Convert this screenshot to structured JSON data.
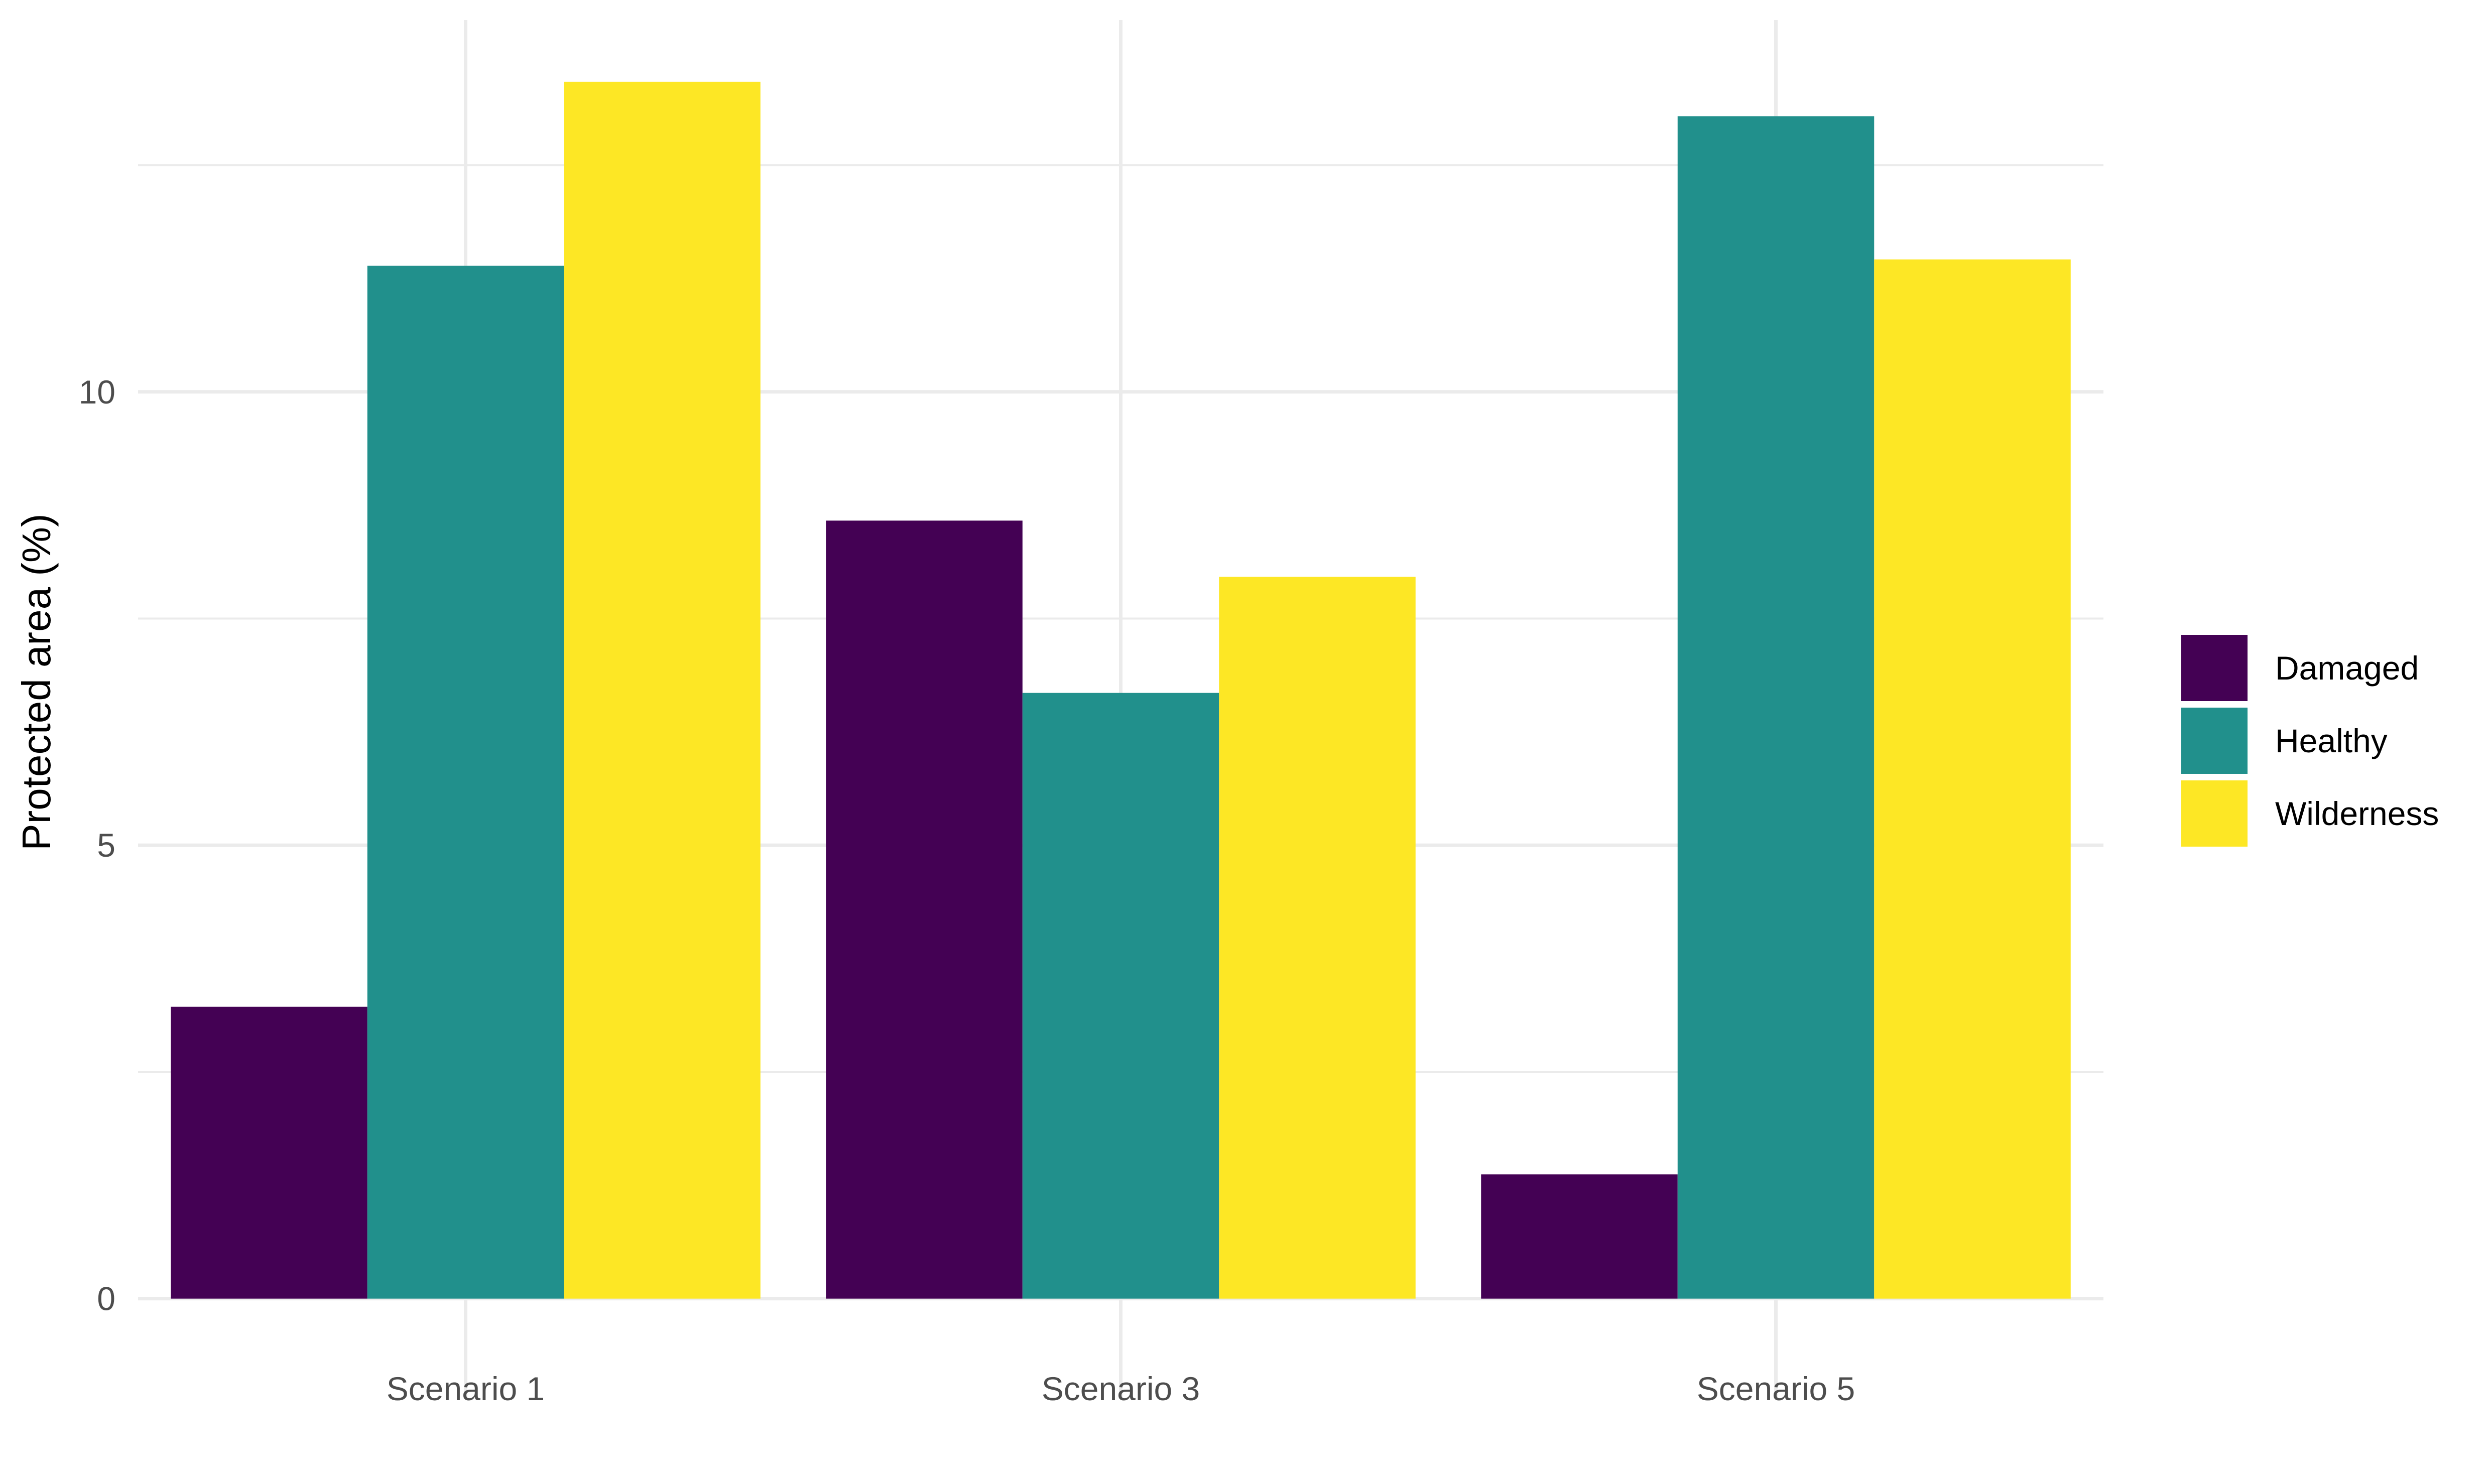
{
  "chart_data": {
    "type": "bar",
    "title": "",
    "xlabel": "",
    "ylabel": "Protected area (%)",
    "categories": [
      "Scenario 1",
      "Scenario 3",
      "Scenario 5"
    ],
    "series": [
      {
        "name": "Damaged",
        "color": "#440154",
        "values": [
          3.22,
          8.58,
          1.37
        ]
      },
      {
        "name": "Healthy",
        "color": "#21908C",
        "values": [
          11.39,
          6.68,
          13.04
        ]
      },
      {
        "name": "Wilderness",
        "color": "#FDE725",
        "values": [
          13.42,
          7.96,
          11.46
        ]
      }
    ],
    "ylim": [
      -0.5,
      14.1
    ],
    "yticks": [
      0,
      5,
      10
    ],
    "ytick_labels": [
      "0",
      "5",
      "10"
    ],
    "grid": true,
    "legend_position": "right"
  }
}
